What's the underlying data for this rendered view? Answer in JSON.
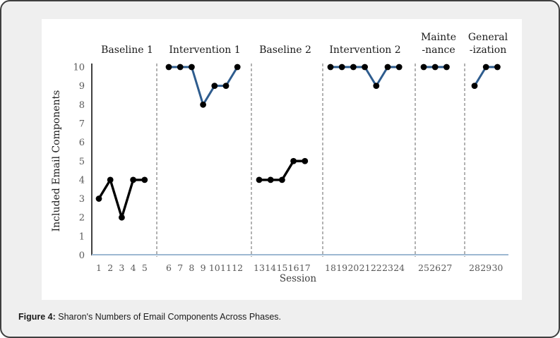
{
  "card": {
    "caption_prefix": "Figure 4: ",
    "caption_text": "Sharon's Numbers of Email Components Across Phases."
  },
  "chart_data": {
    "type": "line",
    "title": "",
    "xlabel": "Session",
    "ylabel": "Included Email Components",
    "ylim": [
      0,
      10
    ],
    "y_ticks": [
      0,
      1,
      2,
      3,
      4,
      5,
      6,
      7,
      8,
      9,
      10
    ],
    "grid": "off",
    "legend": "none",
    "marker_color": "#000000",
    "axis_line_color": "#9db8d2",
    "y_axis_color": "#000000",
    "divider_color": "#7f7f7f",
    "tick_label_color": "#595959",
    "phase_label_color": "#1a1a1a",
    "phases": [
      {
        "name": "baseline-1",
        "label_lines": [
          "Baseline 1"
        ],
        "sessions": [
          1,
          2,
          3,
          4,
          5
        ],
        "values": [
          3,
          4,
          2,
          4,
          4
        ],
        "line_color": "#000000"
      },
      {
        "name": "intervention-1",
        "label_lines": [
          "Intervention 1"
        ],
        "sessions": [
          6,
          7,
          8,
          9,
          10,
          11,
          12
        ],
        "values": [
          10,
          10,
          10,
          8,
          9,
          9,
          10
        ],
        "line_color": "#2e5c8e"
      },
      {
        "name": "baseline-2",
        "label_lines": [
          "Baseline 2"
        ],
        "sessions": [
          13,
          14,
          15,
          16,
          17
        ],
        "values": [
          4,
          4,
          4,
          5,
          5
        ],
        "line_color": "#000000"
      },
      {
        "name": "intervention-2",
        "label_lines": [
          "Intervention 2"
        ],
        "sessions": [
          18,
          19,
          20,
          21,
          22,
          23,
          24
        ],
        "values": [
          10,
          10,
          10,
          10,
          9,
          10,
          10
        ],
        "line_color": "#2e5c8e"
      },
      {
        "name": "maintenance",
        "label_lines": [
          "Mainte",
          "-nance"
        ],
        "sessions": [
          25,
          26,
          27
        ],
        "values": [
          10,
          10,
          10
        ],
        "line_color": "#2e5c8e"
      },
      {
        "name": "generalization",
        "label_lines": [
          "General",
          "-ization"
        ],
        "sessions": [
          28,
          29,
          30
        ],
        "values": [
          9,
          10,
          10
        ],
        "line_color": "#2e5c8e"
      }
    ]
  }
}
